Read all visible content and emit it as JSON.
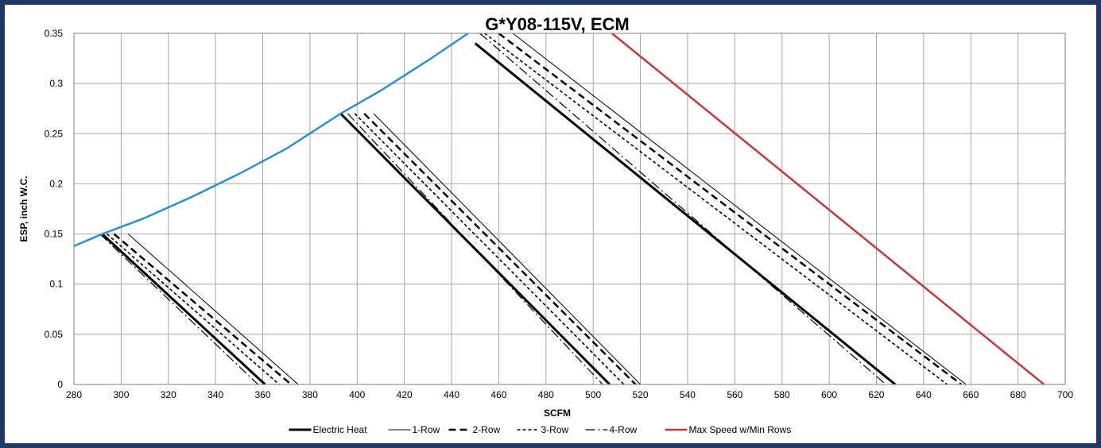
{
  "chart_data": {
    "type": "line",
    "title": "G*Y08-115V, ECM",
    "xlabel": "SCFM",
    "ylabel": "ESP, inch W.C.",
    "xlim": [
      280,
      700
    ],
    "ylim": [
      0,
      0.35
    ],
    "x_ticks": [
      "280",
      "300",
      "320",
      "340",
      "360",
      "380",
      "400",
      "420",
      "440",
      "460",
      "480",
      "500",
      "520",
      "540",
      "560",
      "580",
      "600",
      "620",
      "640",
      "660",
      "680",
      "700"
    ],
    "y_ticks": [
      "0",
      "0.05",
      "0.1",
      "0.15",
      "0.2",
      "0.25",
      "0.3",
      "0.35"
    ],
    "grid": true,
    "legend_position": "bottom",
    "series": [
      {
        "name": "Electric Heat",
        "style": "thick-solid",
        "color": "#000000",
        "segments": [
          [
            [
              292,
              0.15
            ],
            [
              361,
              0
            ]
          ],
          [
            [
              393,
              0.27
            ],
            [
              507,
              0
            ]
          ],
          [
            [
              450,
              0.34
            ],
            [
              628,
              0
            ]
          ]
        ]
      },
      {
        "name": "1-Row",
        "style": "thin-solid",
        "color": "#000000",
        "segments": [
          [
            [
              303,
              0.15
            ],
            [
              375,
              0
            ]
          ],
          [
            [
              407,
              0.27
            ],
            [
              520,
              0
            ]
          ],
          [
            [
              466,
              0.35
            ],
            [
              658,
              0
            ]
          ]
        ]
      },
      {
        "name": "2-Row",
        "style": "dashed",
        "color": "#000000",
        "segments": [
          [
            [
              297,
              0.15
            ],
            [
              372,
              0
            ]
          ],
          [
            [
              403,
              0.27
            ],
            [
              518,
              0
            ]
          ],
          [
            [
              460,
              0.35
            ],
            [
              656,
              0
            ]
          ]
        ]
      },
      {
        "name": "3-Row",
        "style": "dotted",
        "color": "#000000",
        "segments": [
          [
            [
              294,
              0.15
            ],
            [
              367,
              0
            ]
          ],
          [
            [
              399,
              0.27
            ],
            [
              513,
              0
            ]
          ],
          [
            [
              454,
              0.35
            ],
            [
              650,
              0
            ]
          ]
        ]
      },
      {
        "name": "4-Row",
        "style": "dash-dot",
        "color": "#000000",
        "segments": [
          [
            [
              291,
              0.15
            ],
            [
              358,
              0
            ]
          ],
          [
            [
              396,
              0.27
            ],
            [
              504,
              0
            ]
          ],
          [
            [
              452,
              0.35
            ],
            [
              624,
              0
            ]
          ]
        ]
      },
      {
        "name": "",
        "style": "blue-curve",
        "color": "#2e8fd0",
        "segments": [
          [
            [
              280,
              0.138
            ],
            [
              292,
              0.15
            ],
            [
              310,
              0.166
            ],
            [
              330,
              0.187
            ],
            [
              350,
              0.21
            ],
            [
              370,
              0.235
            ],
            [
              393,
              0.27
            ],
            [
              410,
              0.293
            ],
            [
              430,
              0.323
            ],
            [
              447,
              0.35
            ]
          ]
        ]
      },
      {
        "name": "Max Speed w/Min Rows",
        "style": "red-solid",
        "color": "#c0393b",
        "segments": [
          [
            [
              508,
              0.35
            ],
            [
              691,
              0
            ]
          ]
        ]
      }
    ]
  }
}
